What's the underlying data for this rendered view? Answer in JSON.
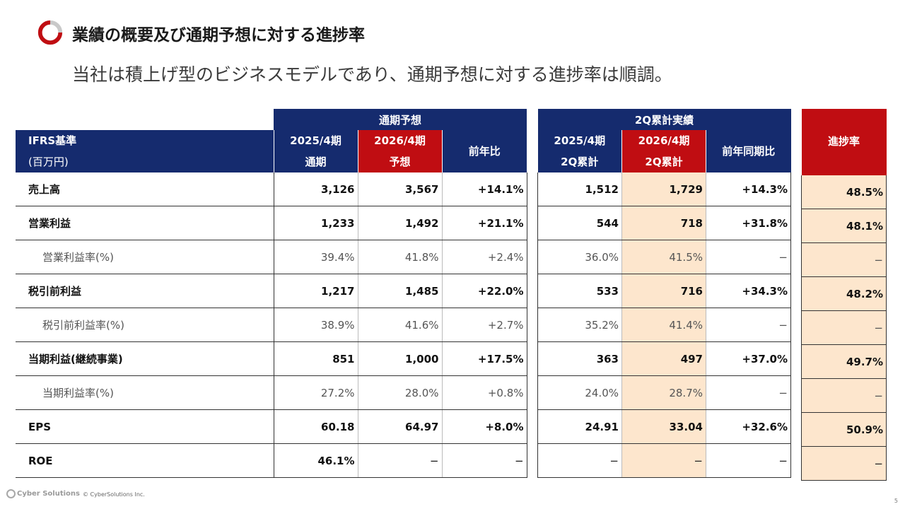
{
  "slide": {
    "title": "業績の概要及び通期予想に対する進捗率",
    "subtitle": "当社は積上げ型のビジネスモデルであり、通期予想に対する進捗率は順調。",
    "page_number": "5"
  },
  "colors": {
    "navy": "#152b6e",
    "red": "#c00d12",
    "peach": "#fde6cd"
  },
  "table": {
    "groups": {
      "forecast": "通期予想",
      "actual": "2Q累計実績",
      "progress": "進捗率"
    },
    "label_header": {
      "line1": "IFRS基準",
      "line2": "(百万円)"
    },
    "columns": {
      "fy2025": {
        "line1": "2025/4期",
        "line2": "通期"
      },
      "fy2026": {
        "line1": "2026/4期",
        "line2": "予想"
      },
      "yoy": "前年比",
      "q2_2025": {
        "line1": "2025/4期",
        "line2": "2Q累計"
      },
      "q2_2026": {
        "line1": "2026/4期",
        "line2": "2Q累計"
      },
      "q2_yoy": "前年同期比"
    },
    "rows": [
      {
        "label": "売上高",
        "fy2025": "3,126",
        "fy2026": "3,567",
        "yoy": "+14.1%",
        "q2_2025": "1,512",
        "q2_2026": "1,729",
        "q2_yoy": "+14.3%",
        "progress": "48.5%"
      },
      {
        "label": "営業利益",
        "fy2025": "1,233",
        "fy2026": "1,492",
        "yoy": "+21.1%",
        "q2_2025": "544",
        "q2_2026": "718",
        "q2_yoy": "+31.8%",
        "progress": "48.1%"
      },
      {
        "label": "営業利益率(%)",
        "fy2025": "39.4%",
        "fy2026": "41.8%",
        "yoy": "+2.4%",
        "q2_2025": "36.0%",
        "q2_2026": "41.5%",
        "q2_yoy": "−",
        "progress": "−"
      },
      {
        "label": "税引前利益",
        "fy2025": "1,217",
        "fy2026": "1,485",
        "yoy": "+22.0%",
        "q2_2025": "533",
        "q2_2026": "716",
        "q2_yoy": "+34.3%",
        "progress": "48.2%"
      },
      {
        "label": "税引前利益率(%)",
        "fy2025": "38.9%",
        "fy2026": "41.6%",
        "yoy": "+2.7%",
        "q2_2025": "35.2%",
        "q2_2026": "41.4%",
        "q2_yoy": "−",
        "progress": "−"
      },
      {
        "label": "当期利益(継続事業)",
        "fy2025": "851",
        "fy2026": "1,000",
        "yoy": "+17.5%",
        "q2_2025": "363",
        "q2_2026": "497",
        "q2_yoy": "+37.0%",
        "progress": "49.7%"
      },
      {
        "label": "当期利益率(%)",
        "fy2025": "27.2%",
        "fy2026": "28.0%",
        "yoy": "+0.8%",
        "q2_2025": "24.0%",
        "q2_2026": "28.7%",
        "q2_yoy": "−",
        "progress": "−"
      },
      {
        "label": "EPS",
        "fy2025": "60.18",
        "fy2026": "64.97",
        "yoy": "+8.0%",
        "q2_2025": "24.91",
        "q2_2026": "33.04",
        "q2_yoy": "+32.6%",
        "progress": "50.9%"
      },
      {
        "label": "ROE",
        "fy2025": "46.1%",
        "fy2026": "−",
        "yoy": "−",
        "q2_2025": "−",
        "q2_2026": "−",
        "q2_yoy": "−",
        "progress": "−"
      }
    ]
  },
  "footer": {
    "logo_text": "Cyber Solutions",
    "copyright": "© CyberSolutions Inc."
  }
}
